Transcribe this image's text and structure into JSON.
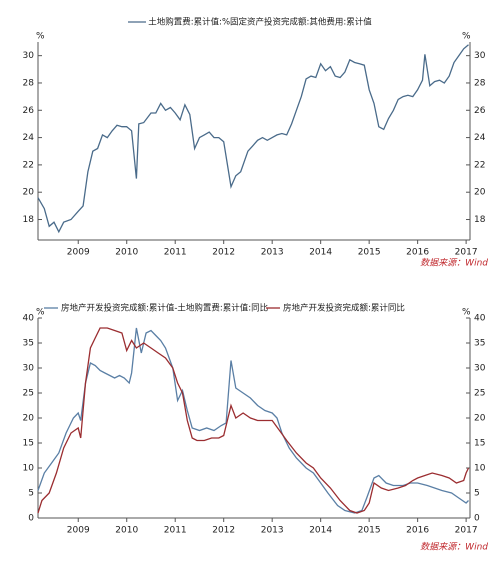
{
  "chart_data": [
    {
      "type": "line",
      "title": "土地购置费:累计值:%固定资产投资完成额:其他费用:累计值",
      "source": "数据来源：Wind",
      "y_unit": "%",
      "y2_unit": "%",
      "xlim": [
        2008.17,
        2017.08
      ],
      "xticks": [
        2009,
        2010,
        2011,
        2012,
        2013,
        2014,
        2015,
        2016,
        2017
      ],
      "ylim": [
        16.5,
        31
      ],
      "yticks": [
        18,
        20,
        22,
        24,
        26,
        28,
        30
      ],
      "y2lim": [
        16.5,
        31
      ],
      "y2ticks": [
        18,
        20,
        22,
        24,
        26,
        28,
        30
      ],
      "series": [
        {
          "name": "土地购置费:累计值:%固定资产投资完成额:其他费用:累计值",
          "color": "#4a6b8a",
          "x": [
            2008.17,
            2008.3,
            2008.4,
            2008.5,
            2008.6,
            2008.7,
            2008.85,
            2009.0,
            2009.1,
            2009.2,
            2009.3,
            2009.4,
            2009.5,
            2009.6,
            2009.7,
            2009.8,
            2009.9,
            2010.0,
            2010.1,
            2010.2,
            2010.25,
            2010.35,
            2010.5,
            2010.6,
            2010.7,
            2010.8,
            2010.9,
            2011.0,
            2011.1,
            2011.2,
            2011.3,
            2011.4,
            2011.5,
            2011.6,
            2011.7,
            2011.8,
            2011.9,
            2012.0,
            2012.15,
            2012.25,
            2012.35,
            2012.5,
            2012.6,
            2012.7,
            2012.8,
            2012.9,
            2013.0,
            2013.1,
            2013.2,
            2013.3,
            2013.4,
            2013.5,
            2013.6,
            2013.7,
            2013.8,
            2013.9,
            2014.0,
            2014.1,
            2014.2,
            2014.3,
            2014.4,
            2014.5,
            2014.6,
            2014.7,
            2014.8,
            2014.9,
            2015.0,
            2015.1,
            2015.2,
            2015.3,
            2015.4,
            2015.5,
            2015.6,
            2015.7,
            2015.8,
            2015.9,
            2016.0,
            2016.1,
            2016.15,
            2016.25,
            2016.35,
            2016.45,
            2016.55,
            2016.65,
            2016.75,
            2016.85,
            2016.95,
            2017.05
          ],
          "values": [
            19.6,
            18.8,
            17.5,
            17.8,
            17.1,
            17.8,
            18.0,
            18.6,
            19.0,
            21.5,
            23.0,
            23.2,
            24.2,
            24.0,
            24.5,
            24.9,
            24.8,
            24.8,
            24.5,
            21.0,
            25.0,
            25.1,
            25.8,
            25.8,
            26.5,
            26.0,
            26.2,
            25.8,
            25.3,
            26.4,
            25.7,
            23.2,
            24.0,
            24.2,
            24.4,
            24.0,
            24.0,
            23.7,
            20.4,
            21.2,
            21.5,
            23.0,
            23.4,
            23.8,
            24.0,
            23.8,
            24.0,
            24.2,
            24.3,
            24.2,
            25.0,
            26.0,
            27.0,
            28.3,
            28.5,
            28.4,
            29.4,
            28.9,
            29.2,
            28.5,
            28.4,
            28.8,
            29.7,
            29.5,
            29.4,
            29.3,
            27.5,
            26.5,
            24.8,
            24.6,
            25.4,
            26.0,
            26.8,
            27.0,
            27.1,
            27.0,
            27.5,
            28.2,
            30.1,
            27.8,
            28.1,
            28.2,
            28.0,
            28.5,
            29.5,
            30.0,
            30.5,
            30.8
          ]
        }
      ]
    },
    {
      "type": "line",
      "source": "数据来源：Wind",
      "y_unit": "%",
      "y2_unit": "%",
      "xlim": [
        2008.17,
        2017.08
      ],
      "xticks": [
        2009,
        2010,
        2011,
        2012,
        2013,
        2014,
        2015,
        2016,
        2017
      ],
      "ylim": [
        0,
        40
      ],
      "yticks": [
        0,
        5,
        10,
        15,
        20,
        25,
        30,
        35,
        40
      ],
      "y2lim": [
        0,
        40
      ],
      "y2ticks": [
        0,
        5,
        10,
        15,
        20,
        25,
        30,
        35,
        40
      ],
      "series": [
        {
          "name": "房地产开发投资完成额:累计值-土地购置费:累计值:同比",
          "color": "#5a7fa5",
          "x": [
            2008.17,
            2008.3,
            2008.45,
            2008.6,
            2008.75,
            2008.9,
            2009.0,
            2009.05,
            2009.15,
            2009.25,
            2009.35,
            2009.45,
            2009.55,
            2009.65,
            2009.75,
            2009.85,
            2009.95,
            2010.05,
            2010.1,
            2010.2,
            2010.3,
            2010.4,
            2010.5,
            2010.6,
            2010.7,
            2010.8,
            2010.95,
            2011.05,
            2011.15,
            2011.25,
            2011.35,
            2011.5,
            2011.65,
            2011.8,
            2011.95,
            2012.05,
            2012.15,
            2012.25,
            2012.4,
            2012.55,
            2012.7,
            2012.85,
            2013.0,
            2013.1,
            2013.2,
            2013.35,
            2013.5,
            2013.7,
            2013.85,
            2014.0,
            2014.15,
            2014.35,
            2014.5,
            2014.7,
            2014.85,
            2014.95,
            2015.1,
            2015.2,
            2015.35,
            2015.5,
            2015.7,
            2015.85,
            2016.0,
            2016.2,
            2016.35,
            2016.5,
            2016.7,
            2016.85,
            2017.0,
            2017.05
          ],
          "values": [
            5.5,
            9,
            11,
            13,
            17,
            20,
            21,
            19.5,
            27,
            31,
            30.5,
            29.5,
            29,
            28.5,
            28,
            28.5,
            28,
            27,
            29,
            38,
            33,
            37,
            37.5,
            36.5,
            35.5,
            34,
            30,
            23.5,
            25.5,
            21.5,
            18,
            17.5,
            18,
            17.5,
            18.5,
            19,
            31.5,
            26,
            25,
            24,
            22.5,
            21.5,
            21,
            20,
            17,
            14,
            12,
            10,
            9,
            7,
            5,
            2.5,
            1.5,
            1.0,
            1.5,
            4,
            8,
            8.5,
            7,
            6.5,
            6.5,
            7,
            7,
            6.5,
            6,
            5.5,
            5,
            4,
            3,
            3.5
          ]
        },
        {
          "name": "房地产开发投资完成额:累计同比",
          "color": "#9b2d30",
          "x": [
            2008.17,
            2008.25,
            2008.4,
            2008.55,
            2008.7,
            2008.85,
            2009.0,
            2009.05,
            2009.15,
            2009.25,
            2009.35,
            2009.45,
            2009.6,
            2009.75,
            2009.9,
            2010.0,
            2010.1,
            2010.2,
            2010.35,
            2010.5,
            2010.65,
            2010.8,
            2010.95,
            2011.05,
            2011.15,
            2011.25,
            2011.35,
            2011.45,
            2011.6,
            2011.75,
            2011.9,
            2012.0,
            2012.15,
            2012.25,
            2012.4,
            2012.55,
            2012.7,
            2012.85,
            2013.0,
            2013.15,
            2013.3,
            2013.5,
            2013.7,
            2013.85,
            2014.0,
            2014.2,
            2014.4,
            2014.6,
            2014.75,
            2014.9,
            2015.0,
            2015.1,
            2015.25,
            2015.4,
            2015.6,
            2015.75,
            2015.9,
            2016.0,
            2016.15,
            2016.3,
            2016.5,
            2016.65,
            2016.8,
            2016.95,
            2017.0,
            2017.05
          ],
          "values": [
            1,
            3.5,
            5,
            9,
            14,
            17,
            18,
            16,
            27,
            34,
            36,
            38,
            38,
            37.5,
            37,
            33.5,
            35.5,
            34,
            35,
            34,
            33,
            32,
            30,
            27,
            25,
            19.5,
            16,
            15.5,
            15.5,
            16,
            16,
            16.5,
            22.5,
            20,
            21,
            20,
            19.5,
            19.5,
            19.5,
            17.5,
            15.5,
            13,
            11,
            10,
            8,
            6,
            3.5,
            1.5,
            1,
            1.5,
            3,
            7,
            6,
            5.5,
            6,
            6.5,
            7.5,
            8,
            8.5,
            9,
            8.5,
            8,
            7,
            7.5,
            9,
            10
          ]
        }
      ]
    }
  ]
}
